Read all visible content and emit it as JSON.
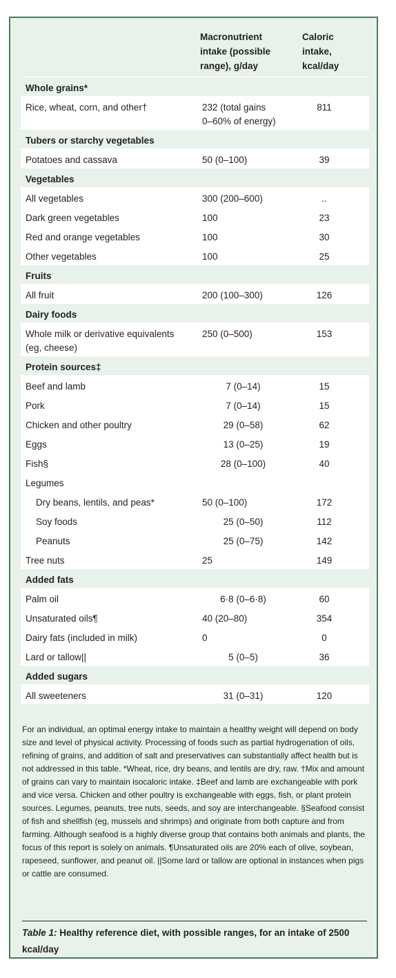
{
  "header": {
    "col1": "Macronutrient intake (possible range), g/day",
    "col1_lines": [
      "Macronutrient",
      "intake (possible",
      "range), g/day"
    ],
    "col2_lines": [
      "Caloric",
      "intake,",
      "kcal/day"
    ]
  },
  "rows": [
    {
      "type": "section",
      "label": "Whole grains*"
    },
    {
      "type": "item",
      "label": "Rice, wheat, corn, and other†",
      "intake_lines": [
        "232 (total gains",
        "0–60% of energy)"
      ],
      "kcal": "811"
    },
    {
      "type": "section",
      "label": "Tubers or starchy vegetables"
    },
    {
      "type": "item",
      "label": "Potatoes and cassava",
      "intake": "50 (0–100)",
      "kcal": "39"
    },
    {
      "type": "section",
      "label": "Vegetables"
    },
    {
      "type": "item",
      "label": "All vegetables",
      "intake": "300 (200–600)",
      "kcal": ".."
    },
    {
      "type": "item",
      "label": "Dark green vegetables",
      "intake": "100",
      "kcal": "23"
    },
    {
      "type": "item",
      "label": "Red and orange vegetables",
      "intake": "100",
      "kcal": "30"
    },
    {
      "type": "item",
      "label": "Other vegetables",
      "intake": "100",
      "kcal": "25"
    },
    {
      "type": "section",
      "label": "Fruits"
    },
    {
      "type": "item",
      "label": "All fruit",
      "intake": "200 (100–300)",
      "kcal": "126"
    },
    {
      "type": "section",
      "label": "Dairy foods"
    },
    {
      "type": "item",
      "label_lines": [
        "Whole milk or derivative equivalents",
        "(eg, cheese)"
      ],
      "intake": "250 (0–500)",
      "kcal": "153"
    },
    {
      "type": "section",
      "label": "Protein sources‡"
    },
    {
      "type": "item",
      "label": "Beef and lamb",
      "intake": "7 (0–14)",
      "kcal": "15"
    },
    {
      "type": "item",
      "label": "Pork",
      "intake": "7 (0–14)",
      "kcal": "15"
    },
    {
      "type": "item",
      "label": "Chicken and other poultry",
      "intake": "29 (0–58)",
      "kcal": "62"
    },
    {
      "type": "item",
      "label": "Eggs",
      "intake": "13 (0–25)",
      "kcal": "19"
    },
    {
      "type": "item",
      "label": "Fish§",
      "intake": "28 (0–100)",
      "kcal": "40"
    },
    {
      "type": "item",
      "label": "Legumes",
      "intake": "",
      "kcal": ""
    },
    {
      "type": "item",
      "indent": true,
      "label": "Dry beans, lentils, and peas*",
      "intake": "50 (0–100)",
      "kcal": "172"
    },
    {
      "type": "item",
      "indent": true,
      "label": "Soy foods",
      "intake": "25 (0–50)",
      "kcal": "112"
    },
    {
      "type": "item",
      "indent": true,
      "label": "Peanuts",
      "intake": "25 (0–75)",
      "kcal": "142"
    },
    {
      "type": "item",
      "label": "Tree nuts",
      "intake": "25",
      "kcal": "149"
    },
    {
      "type": "section",
      "label": "Added fats"
    },
    {
      "type": "item",
      "label": "Palm oil",
      "intake": "6·8 (0–6·8)",
      "kcal": "60"
    },
    {
      "type": "item",
      "label": "Unsaturated oils¶",
      "intake": "40 (20–80)",
      "kcal": "354"
    },
    {
      "type": "item",
      "label": "Dairy fats (included in milk)",
      "intake": "0",
      "kcal": "0"
    },
    {
      "type": "item",
      "label": "Lard or tallow||",
      "intake": "5 (0–5)",
      "kcal": "36"
    },
    {
      "type": "section",
      "label": "Added sugars"
    },
    {
      "type": "item",
      "label": "All sweeteners",
      "intake": "31 (0–31)",
      "kcal": "120"
    }
  ],
  "footnote": "For an individual, an optimal energy intake to maintain a healthy weight will depend on body size and level of physical activity. Processing of foods such as partial hydrogenation of oils, refining of grains, and addition of salt and preservatives can substantially affect health but is not addressed in this table. *Wheat, rice, dry beans, and lentils are dry, raw. †Mix and amount of grains can vary to maintain isocaloric intake. ‡Beef and lamb are exchangeable with pork and vice versa. Chicken and other poultry is exchangeable with eggs, fish, or plant protein sources. Legumes, peanuts, tree nuts, seeds, and soy are interchangeable. §Seafood consist of fish and shellfish (eg, mussels and shrimps) and originate from both capture and from farming. Although seafood is a highly diverse group that contains both animals and plants, the focus of this report is solely on animals. ¶Unsaturated oils are 20% each of olive, soybean, rapeseed, sunflower, and peanut oil. ||Some lard or tallow are optional in instances when pigs or cattle are consumed.",
  "caption": {
    "label": "Table 1:",
    "text": " Healthy reference diet, with possible ranges, for an intake of 2500 kcal/day"
  }
}
